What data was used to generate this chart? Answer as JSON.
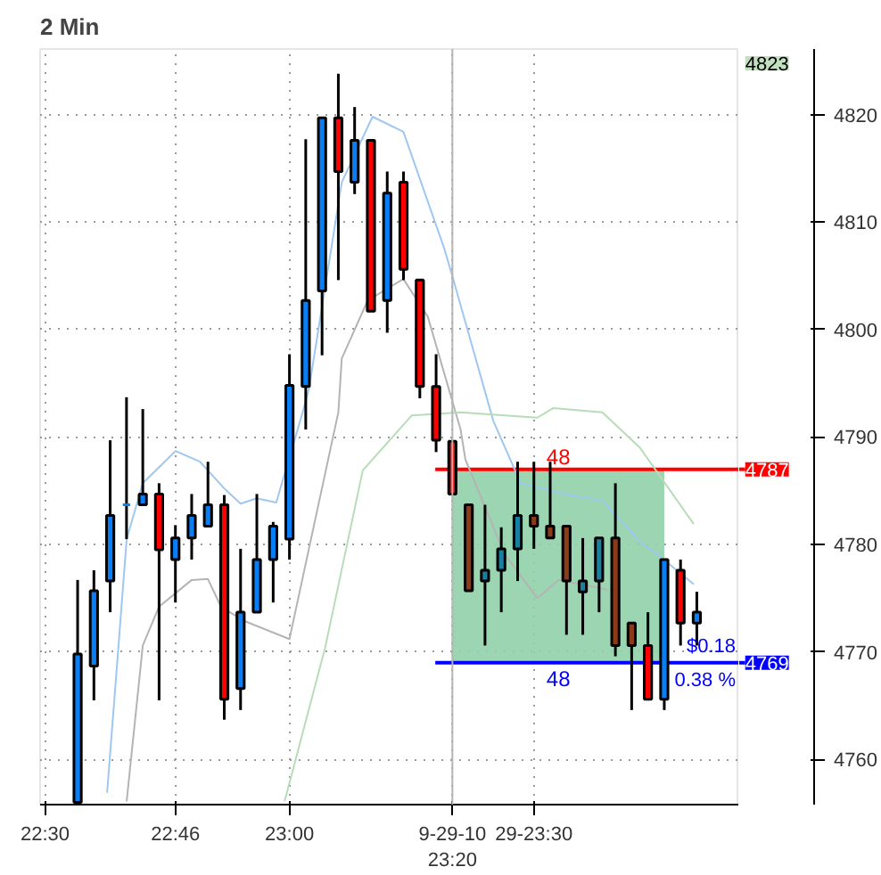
{
  "chart_data": {
    "type": "candlestick",
    "title": "2 Min",
    "x": [
      22.5667,
      22.6,
      22.6333,
      22.6667,
      22.7,
      22.7333,
      22.7667,
      22.8,
      22.8333,
      22.8667,
      22.9,
      22.9333,
      22.9667,
      23.0,
      23.0333,
      23.0667,
      23.1,
      23.1333,
      23.1667,
      23.2,
      23.2333,
      23.2667,
      23.3,
      23.3333,
      23.3667,
      23.4,
      23.4333,
      23.4667,
      23.5,
      23.5333,
      23.5667,
      23.6,
      23.6333,
      23.6667,
      23.7,
      23.7333,
      23.7667,
      23.8,
      23.8333
    ],
    "ohlc": [
      [
        4756,
        4776.7,
        4756,
        4769.8
      ],
      [
        4768.7,
        4777.6,
        4765.5,
        4775.7
      ],
      [
        4776.6,
        4789.7,
        4773.7,
        4782.7
      ],
      [
        4783.7,
        4793.7,
        4780.5,
        4783.7
      ],
      [
        4783.7,
        4792.6,
        4783.7,
        4784.7
      ],
      [
        4784.7,
        4785.7,
        4765.5,
        4779.5
      ],
      [
        4778.6,
        4781.8,
        4774.6,
        4780.6
      ],
      [
        4780.6,
        4784.7,
        4778.6,
        4782.7
      ],
      [
        4781.7,
        4787.7,
        4781.7,
        4783.7
      ],
      [
        4783.7,
        4784.6,
        4763.7,
        4765.6
      ],
      [
        4766.6,
        4779.6,
        4764.6,
        4773.7
      ],
      [
        4773.7,
        4784.7,
        4773.7,
        4778.6
      ],
      [
        4778.6,
        4782.1,
        4774.6,
        4781.7
      ],
      [
        4780.5,
        4797.7,
        4778.6,
        4794.8
      ],
      [
        4794.7,
        4817.7,
        4790.7,
        4802.7
      ],
      [
        4803.6,
        4819.7,
        4797.6,
        4819.7
      ],
      [
        4819.7,
        4823.8,
        4804.6,
        4814.7
      ],
      [
        4813.7,
        4820.7,
        4812.6,
        4817.6
      ],
      [
        4817.6,
        4817.6,
        4801.7,
        4801.7
      ],
      [
        4802.7,
        4814.7,
        4799.7,
        4812.7
      ],
      [
        4813.7,
        4814.7,
        4804.6,
        4805.6
      ],
      [
        4804.6,
        4804.6,
        4793.6,
        4794.7
      ],
      [
        4794.7,
        4797.7,
        4788.6,
        4789.7
      ],
      [
        4789.6,
        4789.6,
        4784.7,
        4784.7
      ],
      [
        4783.7,
        4783.7,
        4775.7,
        4775.7
      ],
      [
        4776.6,
        4783.7,
        4770.6,
        4777.6
      ],
      [
        4777.6,
        4781.6,
        4773.7,
        4779.6
      ],
      [
        4779.6,
        4787.7,
        4776.6,
        4782.7
      ],
      [
        4782.7,
        4787.7,
        4779.6,
        4781.7
      ],
      [
        4781.7,
        4787.7,
        4780.6,
        4780.6
      ],
      [
        4781.7,
        4781.7,
        4771.6,
        4776.6
      ],
      [
        4775.6,
        4780.6,
        4771.6,
        4776.6
      ],
      [
        4776.6,
        4780.6,
        4773.7,
        4780.6
      ],
      [
        4780.6,
        4785.7,
        4769.6,
        4770.6
      ],
      [
        4772.7,
        4772.7,
        4764.6,
        4770.6
      ],
      [
        4770.6,
        4773.7,
        4765.6,
        4765.6
      ],
      [
        4765.6,
        4778.6,
        4764.6,
        4778.6
      ],
      [
        4777.6,
        4778.6,
        4770.6,
        4772.7
      ],
      [
        4772.7,
        4775.6,
        4770.6,
        4773.7
      ]
    ],
    "colors": [
      "#0a7ff5",
      "#0a7ff5",
      "#0a7ff5",
      "#0a7ff5",
      "#0a7ff5",
      "#ff0000",
      "#0a7ff5",
      "#0a7ff5",
      "#0a7ff5",
      "#ff0000",
      "#0a7ff5",
      "#0a7ff5",
      "#0a7ff5",
      "#0a7ff5",
      "#0a7ff5",
      "#0a7ff5",
      "#ff0000",
      "#0a7ff5",
      "#ff0000",
      "#0a7ff5",
      "#ff0000",
      "#ff0000",
      "#ff0000",
      "#ff0000",
      "#8b3a1a",
      "#1a7fa0",
      "#1a7fa0",
      "#1a7fa0",
      "#8b3a1a",
      "#8b3a1a",
      "#8b3a1a",
      "#1a7fa0",
      "#1a7fa0",
      "#8b3a1a",
      "#8b3a1a",
      "#ff0000",
      "#0a7ff5",
      "#ff0000",
      "#0a7ff5"
    ],
    "series": [
      {
        "type": "line",
        "color": "#9ec8f0",
        "x": [
          22.627,
          22.65,
          22.667,
          22.7,
          22.767,
          22.817,
          22.867,
          22.9,
          22.933,
          22.973,
          23.027,
          23.04,
          23.107,
          23.17,
          23.233,
          23.317,
          23.333,
          23.417,
          23.473,
          23.573,
          23.64,
          23.717,
          23.76,
          23.827
        ],
        "values": [
          4756.9,
          4770.4,
          4780.5,
          4785.7,
          4788.7,
          4787.7,
          4785.2,
          4783.8,
          4784.3,
          4783.9,
          4792.3,
          4794.5,
          4813.7,
          4819.8,
          4818.4,
          4807.5,
          4805.0,
          4791.5,
          4785.7,
          4784.6,
          4784.1,
          4780.3,
          4778.8,
          4776.3
        ]
      },
      {
        "type": "line",
        "color": "#b4b4b4",
        "x": [
          22.667,
          22.7,
          22.733,
          22.8,
          22.833,
          22.86,
          22.907,
          23.0,
          23.1,
          23.107,
          23.16,
          23.233,
          23.283,
          23.35,
          23.36,
          23.44,
          23.507,
          23.55,
          23.65
        ],
        "values": [
          4756.1,
          4770.6,
          4774.2,
          4776.7,
          4776.8,
          4774.2,
          4772.9,
          4771.2,
          4792.3,
          4797.3,
          4802.7,
          4804.7,
          4801.2,
          4790.7,
          4787.9,
          4779.1,
          4775.0,
          4776.7,
          4775.8
        ]
      },
      {
        "type": "line",
        "color": "#b8dcb8",
        "x": [
          22.99,
          23.073,
          23.15,
          23.25,
          23.35,
          23.507,
          23.54,
          23.64,
          23.717,
          23.827
        ],
        "values": [
          4756.1,
          4770.4,
          4786.9,
          4792.0,
          4792.3,
          4791.8,
          4792.7,
          4792.3,
          4789.0,
          4781.9
        ]
      }
    ],
    "xlim": [
      22.49,
      23.92
    ],
    "ylim": [
      4755.8,
      4826.1
    ],
    "xticks": [
      {
        "value": 22.5,
        "label": "22:30"
      },
      {
        "value": 22.7667,
        "label": "22:46"
      },
      {
        "value": 23.0,
        "label": "23:00"
      },
      {
        "value": 23.3333,
        "label": "9-29-10 23:20"
      },
      {
        "value": 23.5,
        "label": "29-23:30"
      }
    ],
    "yticks": [
      4760,
      4770,
      4780,
      4790,
      4800,
      4810,
      4820
    ],
    "grid": true,
    "ref_lines": [
      {
        "axis": "x",
        "value": 23.3333,
        "label": null,
        "color": "#b4b4b4"
      },
      {
        "axis": "y",
        "value": 4787,
        "label": "4787",
        "color": "#ff0000"
      },
      {
        "axis": "y",
        "value": 4769,
        "label": "4769",
        "color": "#0000ff"
      }
    ],
    "bands": [
      {
        "axis": "x",
        "from": 23.3333,
        "to": 23.7667,
        "color": "#90d0a8"
      }
    ],
    "annotations": [
      "4823",
      "48",
      "48",
      "$0.18",
      "0.38 %"
    ]
  }
}
